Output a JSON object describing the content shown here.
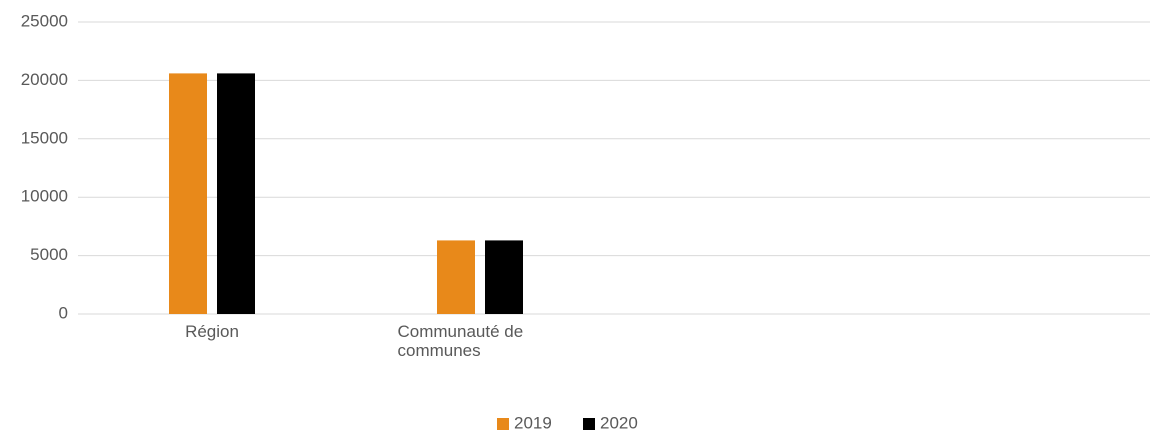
{
  "chart_data": {
    "type": "bar",
    "categories": [
      "Région",
      "Communauté de communes",
      null,
      null
    ],
    "series": [
      {
        "name": "2019",
        "color": "#e8891a",
        "values": [
          20600,
          6300,
          null,
          null
        ]
      },
      {
        "name": "2020",
        "color": "#000000",
        "values": [
          20600,
          6300,
          null,
          null
        ]
      }
    ],
    "ylim": [
      0,
      25000
    ],
    "yticks": [
      0,
      5000,
      10000,
      15000,
      20000,
      25000
    ],
    "grid": true,
    "legend": "bottom"
  }
}
